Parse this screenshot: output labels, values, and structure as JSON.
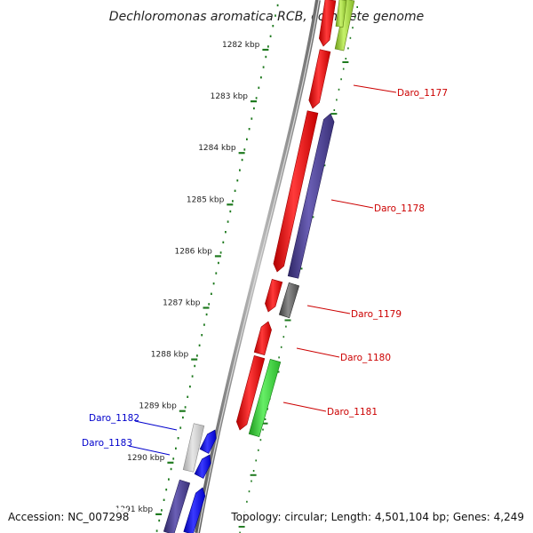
{
  "title": "Dechloromonas aromatica RCB, complete genome",
  "footer": {
    "accession": "Accession: NC_007298",
    "summary": "Topology: circular; Length: 4,501,104 bp; Genes: 4,249"
  },
  "colors": {
    "backbone": "#8a8a8a",
    "tick": "#1f7a1f",
    "forward_red": "#ff0000",
    "reverse_purple": "#4b3f8f",
    "reverse_gray": "#6b6b6b",
    "reverse_green": "#3ccf3c",
    "lime": "#9acd32",
    "forward_blue": "#0000ee",
    "light_gray": "#c8c8c8",
    "label_red": "#cc0000",
    "label_blue": "#0000cc"
  },
  "scale": {
    "unit": "kbp",
    "major_ticks": [
      1282,
      1283,
      1284,
      1285,
      1286,
      1287,
      1288,
      1289,
      1290,
      1291
    ]
  },
  "gene_labels": [
    {
      "name": "Daro_1177",
      "color": "#cc0000",
      "side": "right"
    },
    {
      "name": "Daro_1178",
      "color": "#cc0000",
      "side": "right"
    },
    {
      "name": "Daro_1179",
      "color": "#cc0000",
      "side": "right"
    },
    {
      "name": "Daro_1180",
      "color": "#cc0000",
      "side": "right"
    },
    {
      "name": "Daro_1181",
      "color": "#cc0000",
      "side": "right"
    },
    {
      "name": "Daro_1182",
      "color": "#0000cc",
      "side": "left"
    },
    {
      "name": "Daro_1183",
      "color": "#0000cc",
      "side": "left"
    }
  ]
}
